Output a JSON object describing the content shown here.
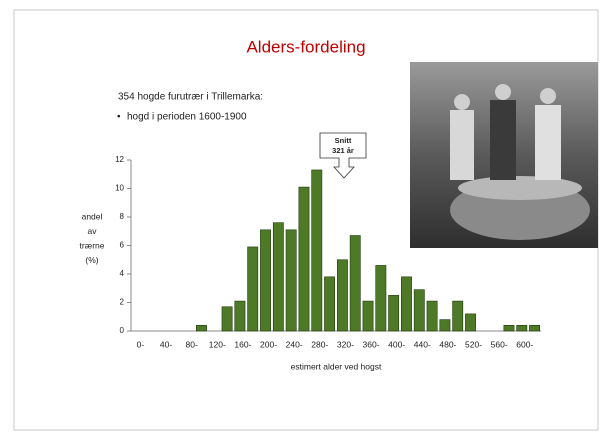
{
  "slide": {
    "title": "Alders-fordeling",
    "intro": "354 hogde furutrær i Trillemarka:",
    "bullet": "hogd i perioden 1600-1900"
  },
  "chart_data": {
    "type": "bar",
    "categories": [
      "0-",
      null,
      "40-",
      null,
      "80-",
      null,
      "120-",
      null,
      "160-",
      null,
      "200-",
      null,
      "240-",
      null,
      "280-",
      null,
      "320-",
      null,
      "360-",
      null,
      "400-",
      null,
      "440-",
      null,
      "480-",
      null,
      "520-",
      null,
      "560-",
      null,
      "600-",
      null
    ],
    "values": [
      0,
      0,
      0,
      0,
      0,
      0.4,
      0,
      1.7,
      2.1,
      5.9,
      7.1,
      7.6,
      7.1,
      10.1,
      11.3,
      3.8,
      5.0,
      6.7,
      2.1,
      4.6,
      2.5,
      3.8,
      2.9,
      2.1,
      0.8,
      2.1,
      1.2,
      0,
      0,
      0.4,
      0.4,
      0.4
    ],
    "color": "#4e7a27",
    "ylim": [
      0,
      12
    ],
    "yticks": [
      0,
      2,
      4,
      6,
      8,
      10,
      12
    ],
    "ylabel": [
      "andel",
      "av",
      "trærne",
      "(%)"
    ],
    "xlabel": "estimert alder ved hogst",
    "annotation": [
      "Snitt",
      "321 år"
    ]
  }
}
